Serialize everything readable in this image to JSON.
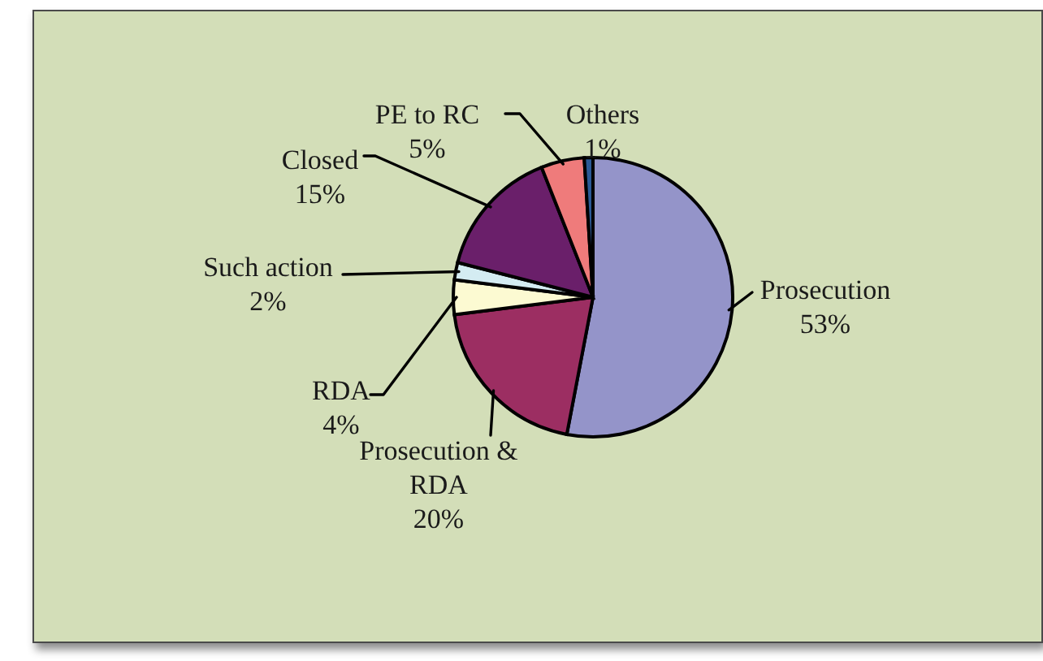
{
  "chart_data": {
    "type": "pie",
    "categories": [
      "Prosecution",
      "Prosecution & RDA",
      "RDA",
      "Such action",
      "Closed",
      "PE to RC",
      "Others"
    ],
    "values": [
      53,
      20,
      4,
      2,
      15,
      5,
      1
    ],
    "colors": [
      "#9494c9",
      "#9c2e62",
      "#fcfad2",
      "#d4ecf2",
      "#6a1f6a",
      "#ef7b7b",
      "#2c5a96"
    ],
    "value_labels": [
      "53%",
      "20%",
      "4%",
      "2%",
      "15%",
      "5%",
      "1%"
    ]
  }
}
